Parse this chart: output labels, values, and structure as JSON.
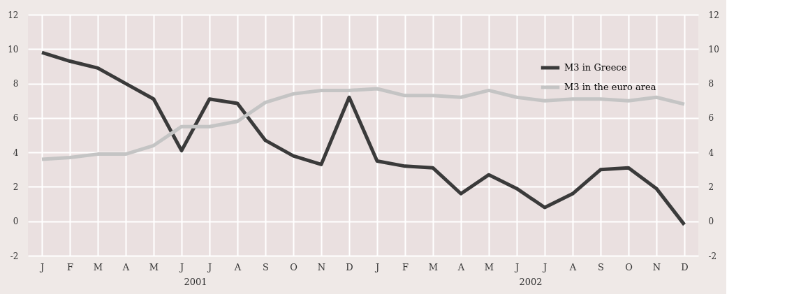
{
  "chart_data": {
    "type": "line",
    "categories": [
      "J",
      "F",
      "M",
      "A",
      "M",
      "J",
      "J",
      "A",
      "S",
      "O",
      "N",
      "D",
      "J",
      "F",
      "M",
      "A",
      "M",
      "J",
      "J",
      "A",
      "S",
      "O",
      "N",
      "D"
    ],
    "series": [
      {
        "name": "M3 in Greece",
        "color": "#3a3a3a",
        "values": [
          9.8,
          9.3,
          8.9,
          8.0,
          7.1,
          4.1,
          7.1,
          6.85,
          4.7,
          3.8,
          3.3,
          7.2,
          3.5,
          3.2,
          3.1,
          1.6,
          2.7,
          1.9,
          0.8,
          1.6,
          3.0,
          3.1,
          1.9,
          -0.2
        ]
      },
      {
        "name": "M3 in the euro area",
        "color": "#c4c4c4",
        "values": [
          3.6,
          3.7,
          3.9,
          3.9,
          4.4,
          5.5,
          5.5,
          5.8,
          6.9,
          7.4,
          7.6,
          7.6,
          7.7,
          7.3,
          7.3,
          7.2,
          7.6,
          7.2,
          7.0,
          7.1,
          7.1,
          7.0,
          7.2,
          6.8
        ]
      }
    ],
    "ylim": [
      -2,
      12
    ],
    "yticks": [
      -2,
      0,
      2,
      4,
      6,
      8,
      10,
      12
    ],
    "y2lim": [
      -2,
      12
    ],
    "y2ticks": [
      -2,
      0,
      2,
      4,
      6,
      8,
      10,
      12
    ],
    "annotations": [
      "2001",
      "2002"
    ],
    "grid": true,
    "legend": "top right",
    "marker": "none",
    "line_style": "solid"
  }
}
